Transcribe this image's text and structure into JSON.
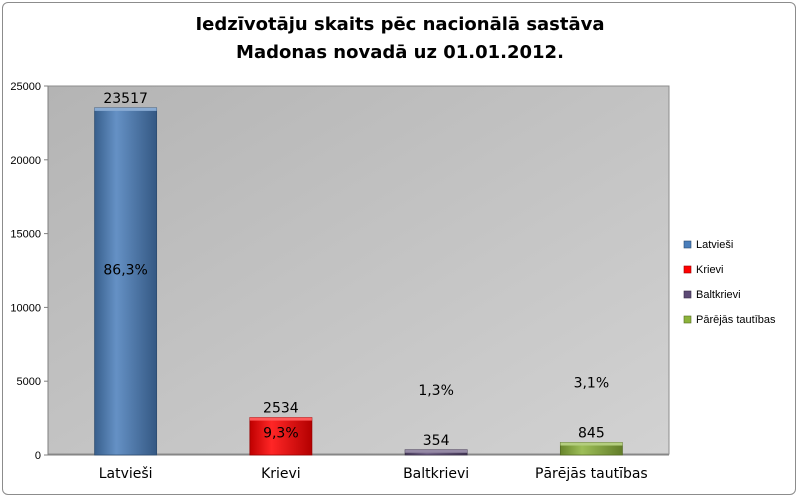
{
  "chart_data": {
    "type": "bar",
    "title_lines": [
      "Iedzīvotāju skaits pēc nacionālā sastāva",
      "Madonas novadā uz 01.01.2012."
    ],
    "categories": [
      "Latvieši",
      "Krievi",
      "Baltkrievi",
      "Pārējās tautības"
    ],
    "values": [
      23517,
      2534,
      354,
      845
    ],
    "value_labels": [
      "23517",
      "2534",
      "354",
      "845"
    ],
    "percent_labels": [
      "86,3%",
      "9,3%",
      "1,3%",
      "3,1%"
    ],
    "colors": [
      "#4a7ebb",
      "#ff0000",
      "#5c4a75",
      "#8cb33a"
    ],
    "ylim": [
      0,
      25000
    ],
    "yticks": [
      0,
      5000,
      10000,
      15000,
      20000,
      25000
    ],
    "ytick_labels": [
      "0",
      "5000",
      "10000",
      "15000",
      "20000",
      "25000"
    ],
    "grid": false,
    "legend_position": "right",
    "legend": [
      "Latvieši",
      "Krievi",
      "Baltkrievi",
      "Pārējās tautības"
    ],
    "plot_background": "#c0c0c0"
  }
}
